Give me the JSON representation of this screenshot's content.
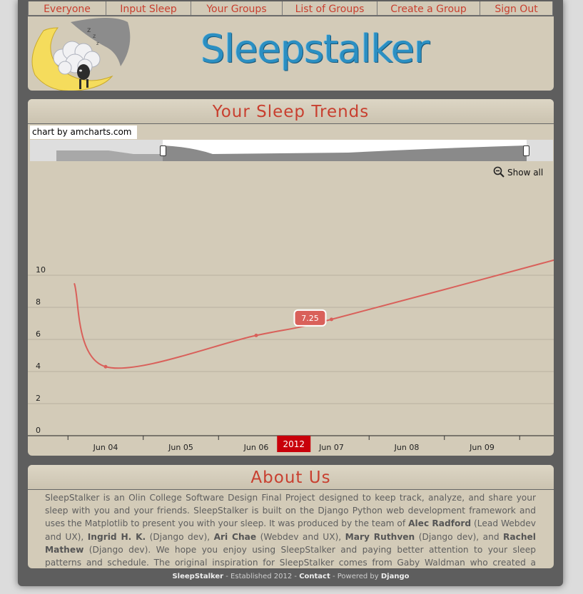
{
  "nav": {
    "everyone": "Everyone",
    "input_sleep": "Input Sleep",
    "your_groups": "Your Groups",
    "list_of_groups": "List of Groups",
    "create_group": "Create a Group",
    "sign_out": "Sign Out"
  },
  "header": {
    "site_title": "Sleepstalker"
  },
  "trends": {
    "title": "Your Sleep Trends",
    "chart_credit": "chart by amcharts.com",
    "show_all": "Show all",
    "year_label": "2012",
    "balloon": "7.25"
  },
  "chart_data": {
    "type": "line",
    "title": "",
    "xlabel": "",
    "ylabel": "",
    "x_ticks": [
      "Jun 04",
      "Jun 05",
      "Jun 06",
      "Jun 07",
      "Jun 08",
      "Jun 09"
    ],
    "y_ticks": [
      0,
      2,
      4,
      6,
      8,
      10
    ],
    "ylim": [
      0,
      11.5
    ],
    "series": [
      {
        "name": "",
        "color": "#d9605a",
        "points": [
          {
            "x": "Jun 03 14:00",
            "y": 9.5
          },
          {
            "x": "Jun 04",
            "y": 4.3
          },
          {
            "x": "Jun 06",
            "y": 6.25
          },
          {
            "x": "Jun 07",
            "y": 7.25
          },
          {
            "x": "Jun 10",
            "y": 11.0
          }
        ]
      }
    ],
    "grid": true
  },
  "about": {
    "title": "About Us",
    "p1": "SleepStalker is an Olin College Software Design Final Project designed to keep track, analyze, and share your sleep with you and your friends. SleepStalker is built on the Django Python web development framework and uses the Matplotlib to present you with your sleep. It was produced by the team of ",
    "n1": "Alec Radford",
    "r1": " (Lead Webdev and UX), ",
    "n2": "Ingrid H. K.",
    "r2": " (Django dev), ",
    "n3": "Ari Chae",
    "r3": " (Webdev and UX), ",
    "n4": "Mary Ruthven",
    "r4": " (Django dev), and ",
    "n5": "Rachel Mathew",
    "p2": " (Django dev). We hope you enjoy using SleepStalker and paying better attention to your sleep patterns and schedule. The original inspiration for SleepStalker comes from Gaby Waldman who created a Google Doc to keep track of her sleep. The rest is history."
  },
  "footer": {
    "brand": "SleepStalker",
    "established": " - Established 2012 - ",
    "contact": "Contact",
    "powered": " - Powered by ",
    "django": "Django"
  }
}
